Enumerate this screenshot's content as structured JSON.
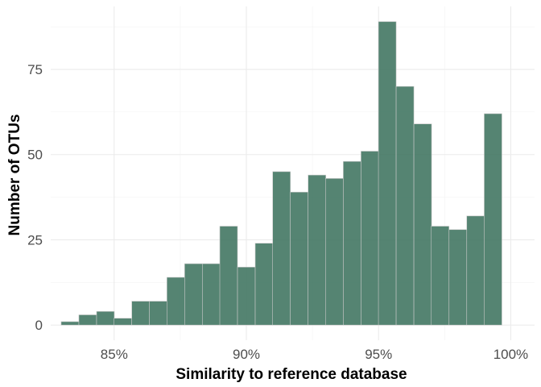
{
  "chart_data": {
    "type": "bar",
    "subtype": "histogram",
    "title": "",
    "xlabel": "Similarity to reference database",
    "ylabel": "Number of OTUs",
    "bin_width": 0.67,
    "bins": [
      {
        "x": 83.33,
        "count": 1
      },
      {
        "x": 84.0,
        "count": 3
      },
      {
        "x": 84.67,
        "count": 4
      },
      {
        "x": 85.33,
        "count": 2
      },
      {
        "x": 86.0,
        "count": 7
      },
      {
        "x": 86.67,
        "count": 7
      },
      {
        "x": 87.33,
        "count": 14
      },
      {
        "x": 88.0,
        "count": 18
      },
      {
        "x": 88.67,
        "count": 18
      },
      {
        "x": 89.33,
        "count": 29
      },
      {
        "x": 90.0,
        "count": 17
      },
      {
        "x": 90.67,
        "count": 24
      },
      {
        "x": 91.33,
        "count": 45
      },
      {
        "x": 92.0,
        "count": 39
      },
      {
        "x": 92.67,
        "count": 44
      },
      {
        "x": 93.33,
        "count": 43
      },
      {
        "x": 94.0,
        "count": 48
      },
      {
        "x": 94.67,
        "count": 51
      },
      {
        "x": 95.33,
        "count": 89
      },
      {
        "x": 96.0,
        "count": 70
      },
      {
        "x": 96.67,
        "count": 59
      },
      {
        "x": 97.33,
        "count": 29
      },
      {
        "x": 98.0,
        "count": 28
      },
      {
        "x": 98.67,
        "count": 32
      },
      {
        "x": 99.33,
        "count": 62
      }
    ],
    "x_ticks": [
      {
        "value": 85,
        "label": "85%"
      },
      {
        "value": 90,
        "label": "90%"
      },
      {
        "value": 95,
        "label": "95%"
      },
      {
        "value": 100,
        "label": "100%"
      }
    ],
    "y_ticks": [
      {
        "value": 0,
        "label": "0"
      },
      {
        "value": 25,
        "label": "25"
      },
      {
        "value": 50,
        "label": "50"
      },
      {
        "value": 75,
        "label": "75"
      }
    ],
    "xlim": [
      82.6,
      100.9
    ],
    "ylim": [
      -4.45,
      93.45
    ],
    "grid": true,
    "colors": {
      "bar_fill": "#3e735e",
      "bar_outline": "#c9c9c9"
    }
  }
}
